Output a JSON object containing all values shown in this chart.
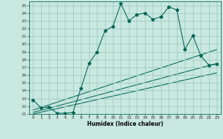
{
  "title": "",
  "xlabel": "Humidex (Indice chaleur)",
  "xlim": [
    -0.5,
    23.5
  ],
  "ylim": [
    11,
    25.5
  ],
  "yticks": [
    11,
    12,
    13,
    14,
    15,
    16,
    17,
    18,
    19,
    20,
    21,
    22,
    23,
    24,
    25
  ],
  "xticks": [
    0,
    1,
    2,
    3,
    4,
    5,
    6,
    7,
    8,
    9,
    10,
    11,
    12,
    13,
    14,
    15,
    16,
    17,
    18,
    19,
    20,
    21,
    22,
    23
  ],
  "background_color": "#c8e8e0",
  "grid_color": "#a0c8c0",
  "line_color": "#006655",
  "main_line": {
    "x": [
      0,
      1,
      2,
      3,
      4,
      5,
      6,
      7,
      8,
      9,
      10,
      11,
      12,
      13,
      14,
      15,
      16,
      17,
      18,
      19,
      20,
      21,
      22,
      23
    ],
    "y": [
      12.8,
      11.8,
      11.9,
      11.1,
      11.1,
      11.2,
      14.3,
      17.5,
      19.0,
      21.7,
      22.3,
      25.2,
      23.0,
      23.8,
      24.0,
      23.2,
      23.5,
      24.8,
      24.4,
      19.3,
      21.1,
      18.5,
      17.3,
      17.4
    ]
  },
  "trend_lines": [
    {
      "x": [
        0,
        23
      ],
      "y": [
        11.5,
        19.3
      ]
    },
    {
      "x": [
        0,
        23
      ],
      "y": [
        11.2,
        17.5
      ]
    },
    {
      "x": [
        0,
        23
      ],
      "y": [
        11.0,
        16.3
      ]
    }
  ]
}
